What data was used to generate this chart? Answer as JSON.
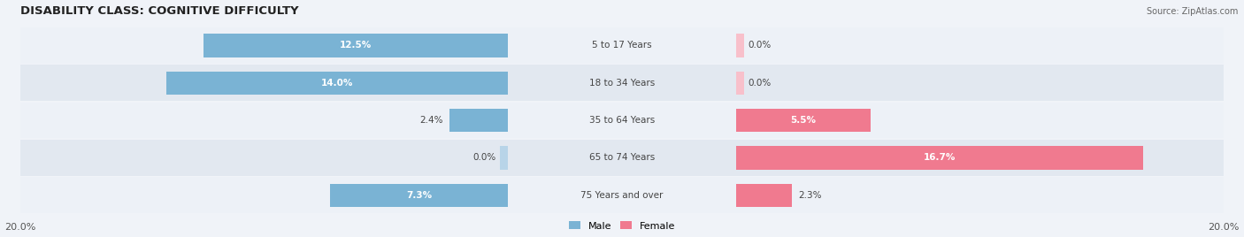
{
  "title": "DISABILITY CLASS: COGNITIVE DIFFICULTY",
  "source": "Source: ZipAtlas.com",
  "categories": [
    "5 to 17 Years",
    "18 to 34 Years",
    "35 to 64 Years",
    "65 to 74 Years",
    "75 Years and over"
  ],
  "male_values": [
    12.5,
    14.0,
    2.4,
    0.0,
    7.3
  ],
  "female_values": [
    0.0,
    0.0,
    5.5,
    16.7,
    2.3
  ],
  "max_val": 20.0,
  "male_color": "#7ab3d4",
  "female_color": "#f07a8f",
  "male_color_light": "#b8d4e8",
  "female_color_light": "#f8c0cb",
  "row_bg_even": "#edf1f7",
  "row_bg_odd": "#e2e8f0",
  "label_color_dark": "#444444",
  "axis_label_color": "#555555",
  "title_color": "#222222",
  "source_color": "#666666",
  "title_fontsize": 9.5,
  "label_fontsize": 7.5,
  "category_fontsize": 7.5,
  "axis_fontsize": 8,
  "legend_fontsize": 8
}
